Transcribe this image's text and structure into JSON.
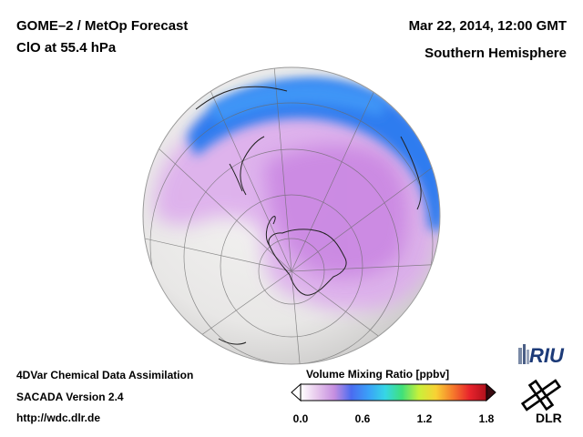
{
  "header": {
    "product": "GOME–2 / MetOp Forecast",
    "species": "ClO at 55.4 hPa",
    "datetime": "Mar 22, 2014, 12:00 GMT",
    "region": "Southern Hemisphere"
  },
  "footer": {
    "method": "4DVar Chemical Data Assimilation",
    "version": "SACADA Version 2.4",
    "url": "http://wdc.dlr.de"
  },
  "colorbar": {
    "title": "Volume Mixing Ratio [ppbv]",
    "min": 0.0,
    "max": 1.8,
    "ticks": [
      "0.0",
      "0.6",
      "1.2",
      "1.8"
    ],
    "colors": [
      "#ffffff",
      "#e6c6ec",
      "#c58ee0",
      "#4a6cf0",
      "#3aa0f8",
      "#36d6e6",
      "#3fe07a",
      "#c8f03a",
      "#f8d234",
      "#f67c2c",
      "#e8242c",
      "#b0101c"
    ]
  },
  "logos": {
    "riu": "RIU",
    "dlr": "DLR"
  },
  "map": {
    "projection": "orthographic",
    "hemisphere": "south",
    "high_clo_color": "#2d7cf0",
    "mid_clo_color": "#d6a6ea",
    "low_clo_color": "#f0e6f0",
    "background_color": "#ecebea"
  }
}
